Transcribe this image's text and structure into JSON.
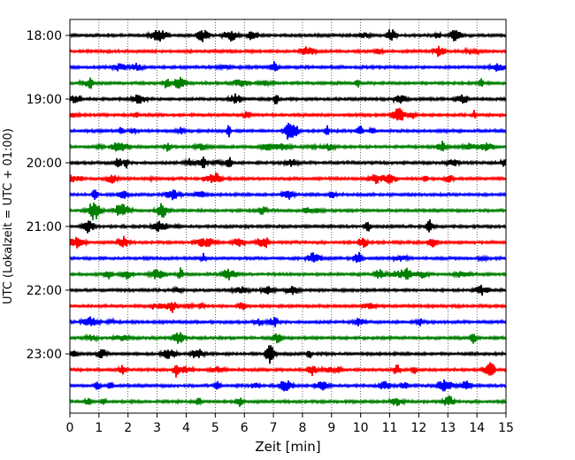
{
  "chart_data": {
    "type": "line",
    "title": "",
    "xlabel": "Zeit  [min]",
    "ylabel": "UTC (Lokalzeit = UTC + 01:00)",
    "xlim": [
      0,
      15
    ],
    "x_ticks": [
      0,
      1,
      2,
      3,
      4,
      5,
      6,
      7,
      8,
      9,
      10,
      11,
      12,
      13,
      14,
      15
    ],
    "y_tick_labels": [
      "18:00",
      "19:00",
      "20:00",
      "21:00",
      "22:00",
      "23:00"
    ],
    "y_tick_rows": [
      0,
      4,
      8,
      12,
      16,
      20
    ],
    "grid": "vertical dotted",
    "row_interval_min": 15,
    "series_colors": [
      "#000000",
      "#ff0000",
      "#0000ff",
      "#008000"
    ],
    "traces": [
      {
        "time": "18:00",
        "color": "#000000"
      },
      {
        "time": "18:15",
        "color": "#ff0000"
      },
      {
        "time": "18:30",
        "color": "#0000ff"
      },
      {
        "time": "18:45",
        "color": "#008000"
      },
      {
        "time": "19:00",
        "color": "#000000"
      },
      {
        "time": "19:15",
        "color": "#ff0000"
      },
      {
        "time": "19:30",
        "color": "#0000ff"
      },
      {
        "time": "19:45",
        "color": "#008000"
      },
      {
        "time": "20:00",
        "color": "#000000"
      },
      {
        "time": "20:15",
        "color": "#ff0000"
      },
      {
        "time": "20:30",
        "color": "#0000ff"
      },
      {
        "time": "20:45",
        "color": "#008000"
      },
      {
        "time": "21:00",
        "color": "#000000"
      },
      {
        "time": "21:15",
        "color": "#ff0000"
      },
      {
        "time": "21:30",
        "color": "#0000ff"
      },
      {
        "time": "21:45",
        "color": "#008000"
      },
      {
        "time": "22:00",
        "color": "#000000"
      },
      {
        "time": "22:15",
        "color": "#ff0000"
      },
      {
        "time": "22:30",
        "color": "#0000ff"
      },
      {
        "time": "22:45",
        "color": "#008000"
      },
      {
        "time": "23:00",
        "color": "#000000"
      },
      {
        "time": "23:15",
        "color": "#ff0000"
      },
      {
        "time": "23:30",
        "color": "#0000ff"
      },
      {
        "time": "23:45",
        "color": "#008000"
      }
    ]
  }
}
